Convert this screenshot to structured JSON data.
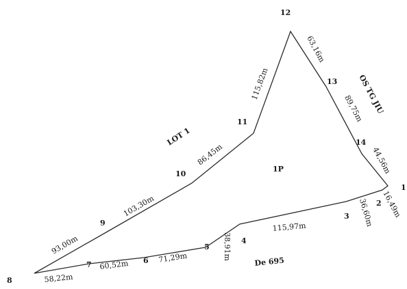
{
  "vertices": [
    {
      "id": "8",
      "label": "8"
    },
    {
      "id": "7",
      "label": "7"
    },
    {
      "id": "6",
      "label": "6"
    },
    {
      "id": "5",
      "label": "5"
    },
    {
      "id": "4",
      "label": "4"
    },
    {
      "id": "3",
      "label": "3"
    },
    {
      "id": "2",
      "label": "2"
    },
    {
      "id": "1",
      "label": "1"
    },
    {
      "id": "14",
      "label": "14"
    },
    {
      "id": "13",
      "label": "13"
    },
    {
      "id": "12",
      "label": "12"
    },
    {
      "id": "11",
      "label": "11"
    },
    {
      "id": "10",
      "label": "10"
    },
    {
      "id": "9",
      "label": "9"
    }
  ],
  "segments": [
    {
      "from": "8",
      "to": "7",
      "length": "58,22m"
    },
    {
      "from": "7",
      "to": "6",
      "length": "60,52m"
    },
    {
      "from": "6",
      "to": "5",
      "length": "71,29m"
    },
    {
      "from": "5",
      "to": "4",
      "length": "38,91m"
    },
    {
      "from": "4",
      "to": "3",
      "length": "115,97m"
    },
    {
      "from": "3",
      "to": "2",
      "length": "36,60m"
    },
    {
      "from": "2",
      "to": "1",
      "length": "16,49m"
    },
    {
      "from": "1",
      "to": "14",
      "length": "44,56m"
    },
    {
      "from": "14",
      "to": "13",
      "length": "89,75m"
    },
    {
      "from": "13",
      "to": "12",
      "length": "63,16m"
    },
    {
      "from": "12",
      "to": "11",
      "length": "115,82m"
    },
    {
      "from": "11",
      "to": "10",
      "length": "86,45m"
    },
    {
      "from": "10",
      "to": "9",
      "length": "103,30m"
    },
    {
      "from": "9",
      "to": "8",
      "length": "93,00m"
    }
  ],
  "areas": {
    "parcel": "1P",
    "lot_north": "LOT 1",
    "road_south": "De 695",
    "east": "OS TG JIU"
  }
}
